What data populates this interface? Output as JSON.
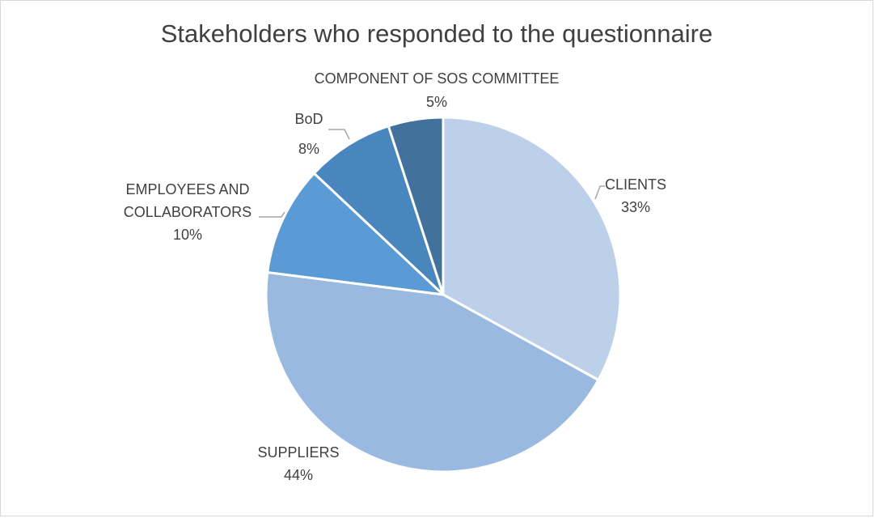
{
  "chart_data": {
    "type": "pie",
    "title": "Stakeholders who responded to the questionnaire",
    "slices": [
      {
        "label": "CLIENTS",
        "value": 33,
        "pct": "33%",
        "color": "#bdd0ea"
      },
      {
        "label": "SUPPLIERS",
        "value": 44,
        "pct": "44%",
        "color": "#9ab9e0"
      },
      {
        "label": "EMPLOYEES AND COLLABORATORS",
        "value": 10,
        "pct": "10%",
        "color": "#5b9bd5"
      },
      {
        "label": "BoD",
        "value": 8,
        "pct": "8%",
        "color": "#4a86be"
      },
      {
        "label": "COMPONENT OF SOS COMMITTEE",
        "value": 5,
        "pct": "5%",
        "color": "#41719c"
      }
    ],
    "start_angle": "12 o'clock",
    "direction": "clockwise",
    "legend": "none",
    "label_lines": [
      "EMPLOYEES AND",
      "COLLABORATORS"
    ]
  },
  "colors": {
    "title_text": "#404040",
    "border": "#d9d9d9",
    "leader": "#a6a6a6",
    "slice_border": "#ffffff"
  }
}
